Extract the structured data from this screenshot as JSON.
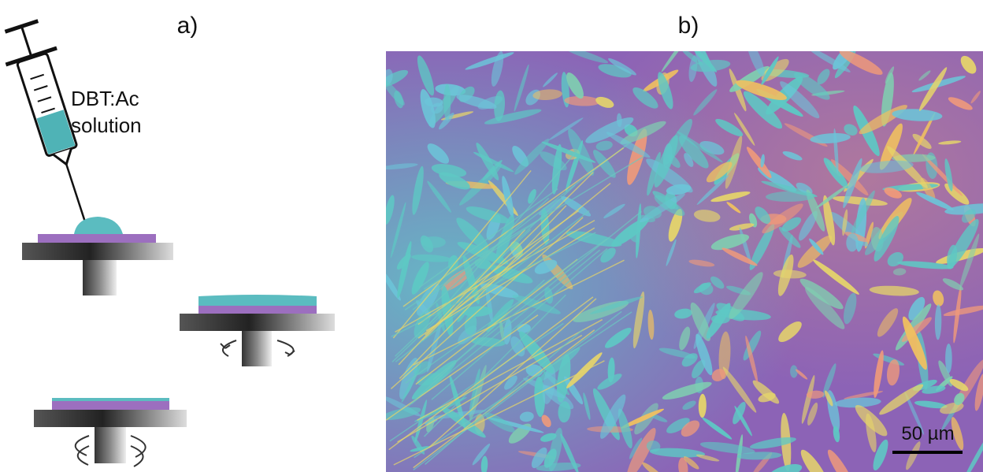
{
  "panels": {
    "a": {
      "label": "a)",
      "syringe_label": [
        "DBT:Ac",
        "solution"
      ]
    },
    "b": {
      "label": "b)",
      "scale_bar": "50 µm"
    }
  }
}
